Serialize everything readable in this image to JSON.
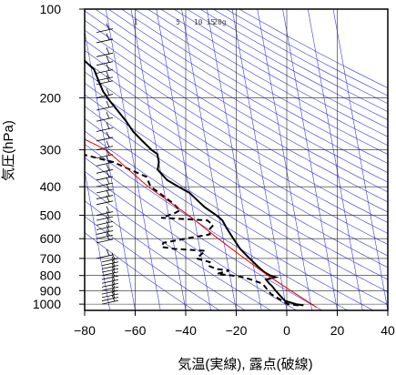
{
  "chart_data": {
    "type": "line",
    "subtype": "skew-T log-P sounding diagram",
    "xlabel": "気温(実線), 露点(破線)",
    "ylabel": "気圧(hPa)",
    "xlim": [
      -80,
      40
    ],
    "ylim": [
      1050,
      100
    ],
    "y_scale": "log",
    "x_ticks": [
      -80,
      -60,
      -40,
      -20,
      0,
      20,
      40
    ],
    "x_tick_labels": [
      "−80",
      "−60",
      "−40",
      "−20",
      "0",
      "20",
      "40"
    ],
    "y_ticks": [
      100,
      200,
      300,
      400,
      500,
      600,
      700,
      800,
      900,
      1000
    ],
    "y_tick_labels": [
      "100",
      "200",
      "300",
      "400",
      "500",
      "600",
      "700",
      "800",
      "900",
      "1000"
    ],
    "grid": true,
    "mixing_ratio_labels": [
      "1",
      "5",
      "10",
      "15",
      "20g"
    ],
    "mixing_ratio_values": [
      1,
      5,
      10,
      15,
      20
    ],
    "series": [
      {
        "role": "temperature",
        "style": "solid",
        "color": "#000000",
        "points": [
          [
            1010,
            7
          ],
          [
            1000,
            4
          ],
          [
            975,
            0
          ],
          [
            950,
            -1
          ],
          [
            925,
            -2
          ],
          [
            900,
            -3
          ],
          [
            870,
            -4
          ],
          [
            850,
            -5
          ],
          [
            825,
            -6
          ],
          [
            810,
            -2
          ],
          [
            800,
            -4
          ],
          [
            780,
            -6
          ],
          [
            750,
            -8
          ],
          [
            700,
            -11
          ],
          [
            650,
            -14
          ],
          [
            600,
            -16
          ],
          [
            550,
            -18
          ],
          [
            520,
            -19
          ],
          [
            500,
            -21
          ],
          [
            470,
            -25
          ],
          [
            450,
            -27
          ],
          [
            420,
            -30
          ],
          [
            400,
            -34
          ],
          [
            380,
            -38
          ],
          [
            360,
            -40
          ],
          [
            350,
            -41
          ],
          [
            330,
            -40
          ],
          [
            310,
            -40
          ],
          [
            300,
            -42
          ],
          [
            280,
            -45
          ],
          [
            260,
            -48
          ],
          [
            240,
            -50
          ],
          [
            225,
            -52
          ],
          [
            205,
            -55
          ],
          [
            190,
            -57
          ],
          [
            175,
            -58
          ],
          [
            160,
            -59
          ],
          [
            150,
            -62
          ],
          [
            140,
            -63
          ],
          [
            130,
            -64
          ],
          [
            120,
            -66
          ],
          [
            112,
            -67
          ],
          [
            105,
            -68
          ],
          [
            100,
            -69
          ]
        ]
      },
      {
        "role": "dewpoint",
        "style": "dashed",
        "color": "#000000",
        "points": [
          [
            1010,
            5
          ],
          [
            1000,
            1
          ],
          [
            975,
            -1
          ],
          [
            950,
            -3
          ],
          [
            925,
            -5
          ],
          [
            900,
            -6
          ],
          [
            870,
            -7
          ],
          [
            850,
            -8
          ],
          [
            825,
            -12
          ],
          [
            810,
            -15
          ],
          [
            800,
            -19
          ],
          [
            790,
            -25
          ],
          [
            770,
            -20
          ],
          [
            760,
            -25
          ],
          [
            740,
            -28
          ],
          [
            720,
            -27
          ],
          [
            700,
            -32
          ],
          [
            680,
            -30
          ],
          [
            660,
            -28
          ],
          [
            650,
            -40
          ],
          [
            640,
            -45
          ],
          [
            620,
            -44
          ],
          [
            600,
            -35
          ],
          [
            580,
            -25
          ],
          [
            560,
            -25
          ],
          [
            540,
            -23
          ],
          [
            520,
            -25
          ],
          [
            510,
            -43
          ],
          [
            500,
            -40
          ],
          [
            490,
            -37
          ],
          [
            480,
            -35
          ],
          [
            450,
            -38
          ],
          [
            420,
            -42
          ],
          [
            400,
            -45
          ],
          [
            370,
            -46
          ],
          [
            350,
            -52
          ],
          [
            330,
            -58
          ],
          [
            310,
            -70
          ],
          [
            300,
            -72
          ],
          [
            290,
            -73
          ],
          [
            280,
            -74
          ]
        ]
      },
      {
        "role": "parcel",
        "style": "solid",
        "color": "#e00000",
        "points": [
          [
            1025,
            12
          ],
          [
            900,
            3
          ],
          [
            800,
            -5
          ],
          [
            700,
            -13
          ],
          [
            600,
            -22
          ],
          [
            500,
            -32
          ],
          [
            400,
            -46
          ],
          [
            300,
            -60
          ],
          [
            250,
            -77
          ]
        ]
      }
    ],
    "wind_barb_levels": [
      1000,
      975,
      950,
      925,
      900,
      875,
      850,
      825,
      800,
      780,
      760,
      740,
      720,
      700,
      620,
      600,
      580,
      560,
      540,
      520,
      500,
      460,
      440,
      420,
      400,
      380,
      360,
      340,
      320,
      300,
      280,
      260,
      240,
      220,
      200,
      180,
      175,
      165,
      155,
      145,
      130,
      120,
      100
    ]
  }
}
